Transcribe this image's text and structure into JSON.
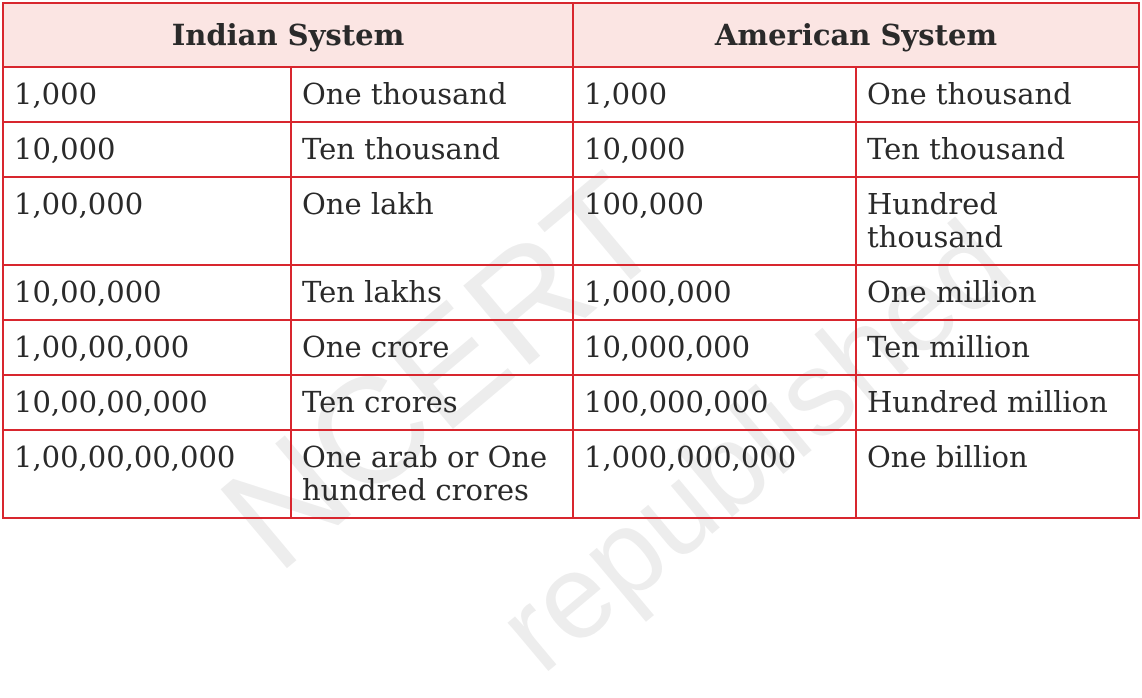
{
  "table": {
    "headers": [
      "Indian System",
      "American System"
    ],
    "rows": [
      [
        "1,000",
        "One thousand",
        "1,000",
        "One thousand"
      ],
      [
        "10,000",
        "Ten thousand",
        "10,000",
        "Ten thousand"
      ],
      [
        "1,00,000",
        "One lakh",
        "100,000",
        "Hundred thousand"
      ],
      [
        "10,00,000",
        "Ten lakhs",
        "1,000,000",
        "One million"
      ],
      [
        "1,00,00,000",
        "One crore",
        "10,000,000",
        "Ten million"
      ],
      [
        "10,00,00,000",
        "Ten crores",
        "100,000,000",
        "Hundred million"
      ],
      [
        "1,00,00,00,000",
        "One arab or One hundred crores",
        "1,000,000,000",
        "One billion"
      ]
    ]
  },
  "watermark": [
    "NCERT",
    "republished"
  ]
}
